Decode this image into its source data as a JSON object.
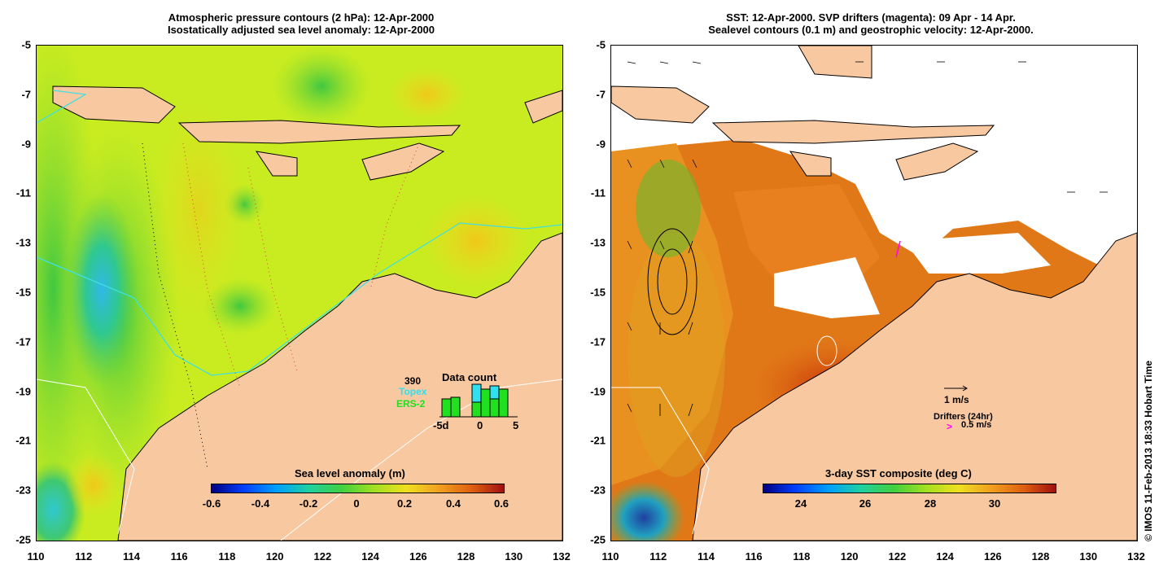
{
  "left_panel": {
    "title_line1": "Atmospheric pressure contours (2 hPa): 12-Apr-2000",
    "title_line2": "Isostatically adjusted sea level anomaly: 12-Apr-2000",
    "colorbar_title": "Sea level anomaly (m)",
    "colorbar_labels": [
      "-0.6",
      "-0.4",
      "-0.2",
      "0",
      "0.2",
      "0.4",
      "0.6"
    ],
    "data_count": {
      "number": "390",
      "title": "Data count",
      "topex_label": "Topex",
      "ers_label": "ERS-2",
      "axis_labels": [
        "-5d",
        "0",
        "5"
      ]
    }
  },
  "right_panel": {
    "title_line1": "SST: 12-Apr-2000. SVP drifters (magenta): 09 Apr - 14 Apr.",
    "title_line2": "Sealevel contours (0.1 m) and geostrophic velocity: 12-Apr-2000.",
    "colorbar_title": "3-day SST composite (deg C)",
    "colorbar_labels": [
      "24",
      "26",
      "28",
      "30"
    ],
    "velocity_legend": "1 m/s",
    "drifters_legend": "Drifters (24hr)",
    "drifters_speed": "0.5 m/s",
    "drifters_symbol": ">"
  },
  "axes": {
    "x_ticks": [
      "110",
      "112",
      "114",
      "116",
      "118",
      "120",
      "122",
      "124",
      "126",
      "128",
      "130",
      "132"
    ],
    "y_ticks": [
      "-5",
      "-7",
      "-9",
      "-11",
      "-13",
      "-15",
      "-17",
      "-19",
      "-21",
      "-23",
      "-25"
    ],
    "lon_range": [
      110,
      132
    ],
    "lat_range": [
      -25,
      -5
    ]
  },
  "credit": "© IMOS 11-Feb-2013 18:33 Hobart Time",
  "colors": {
    "land": "#f8c8a0",
    "sla_background": "#c8ec20",
    "sst_warm": "#e07010",
    "drifter": "#ff00ff",
    "track": "#40e0e0"
  }
}
